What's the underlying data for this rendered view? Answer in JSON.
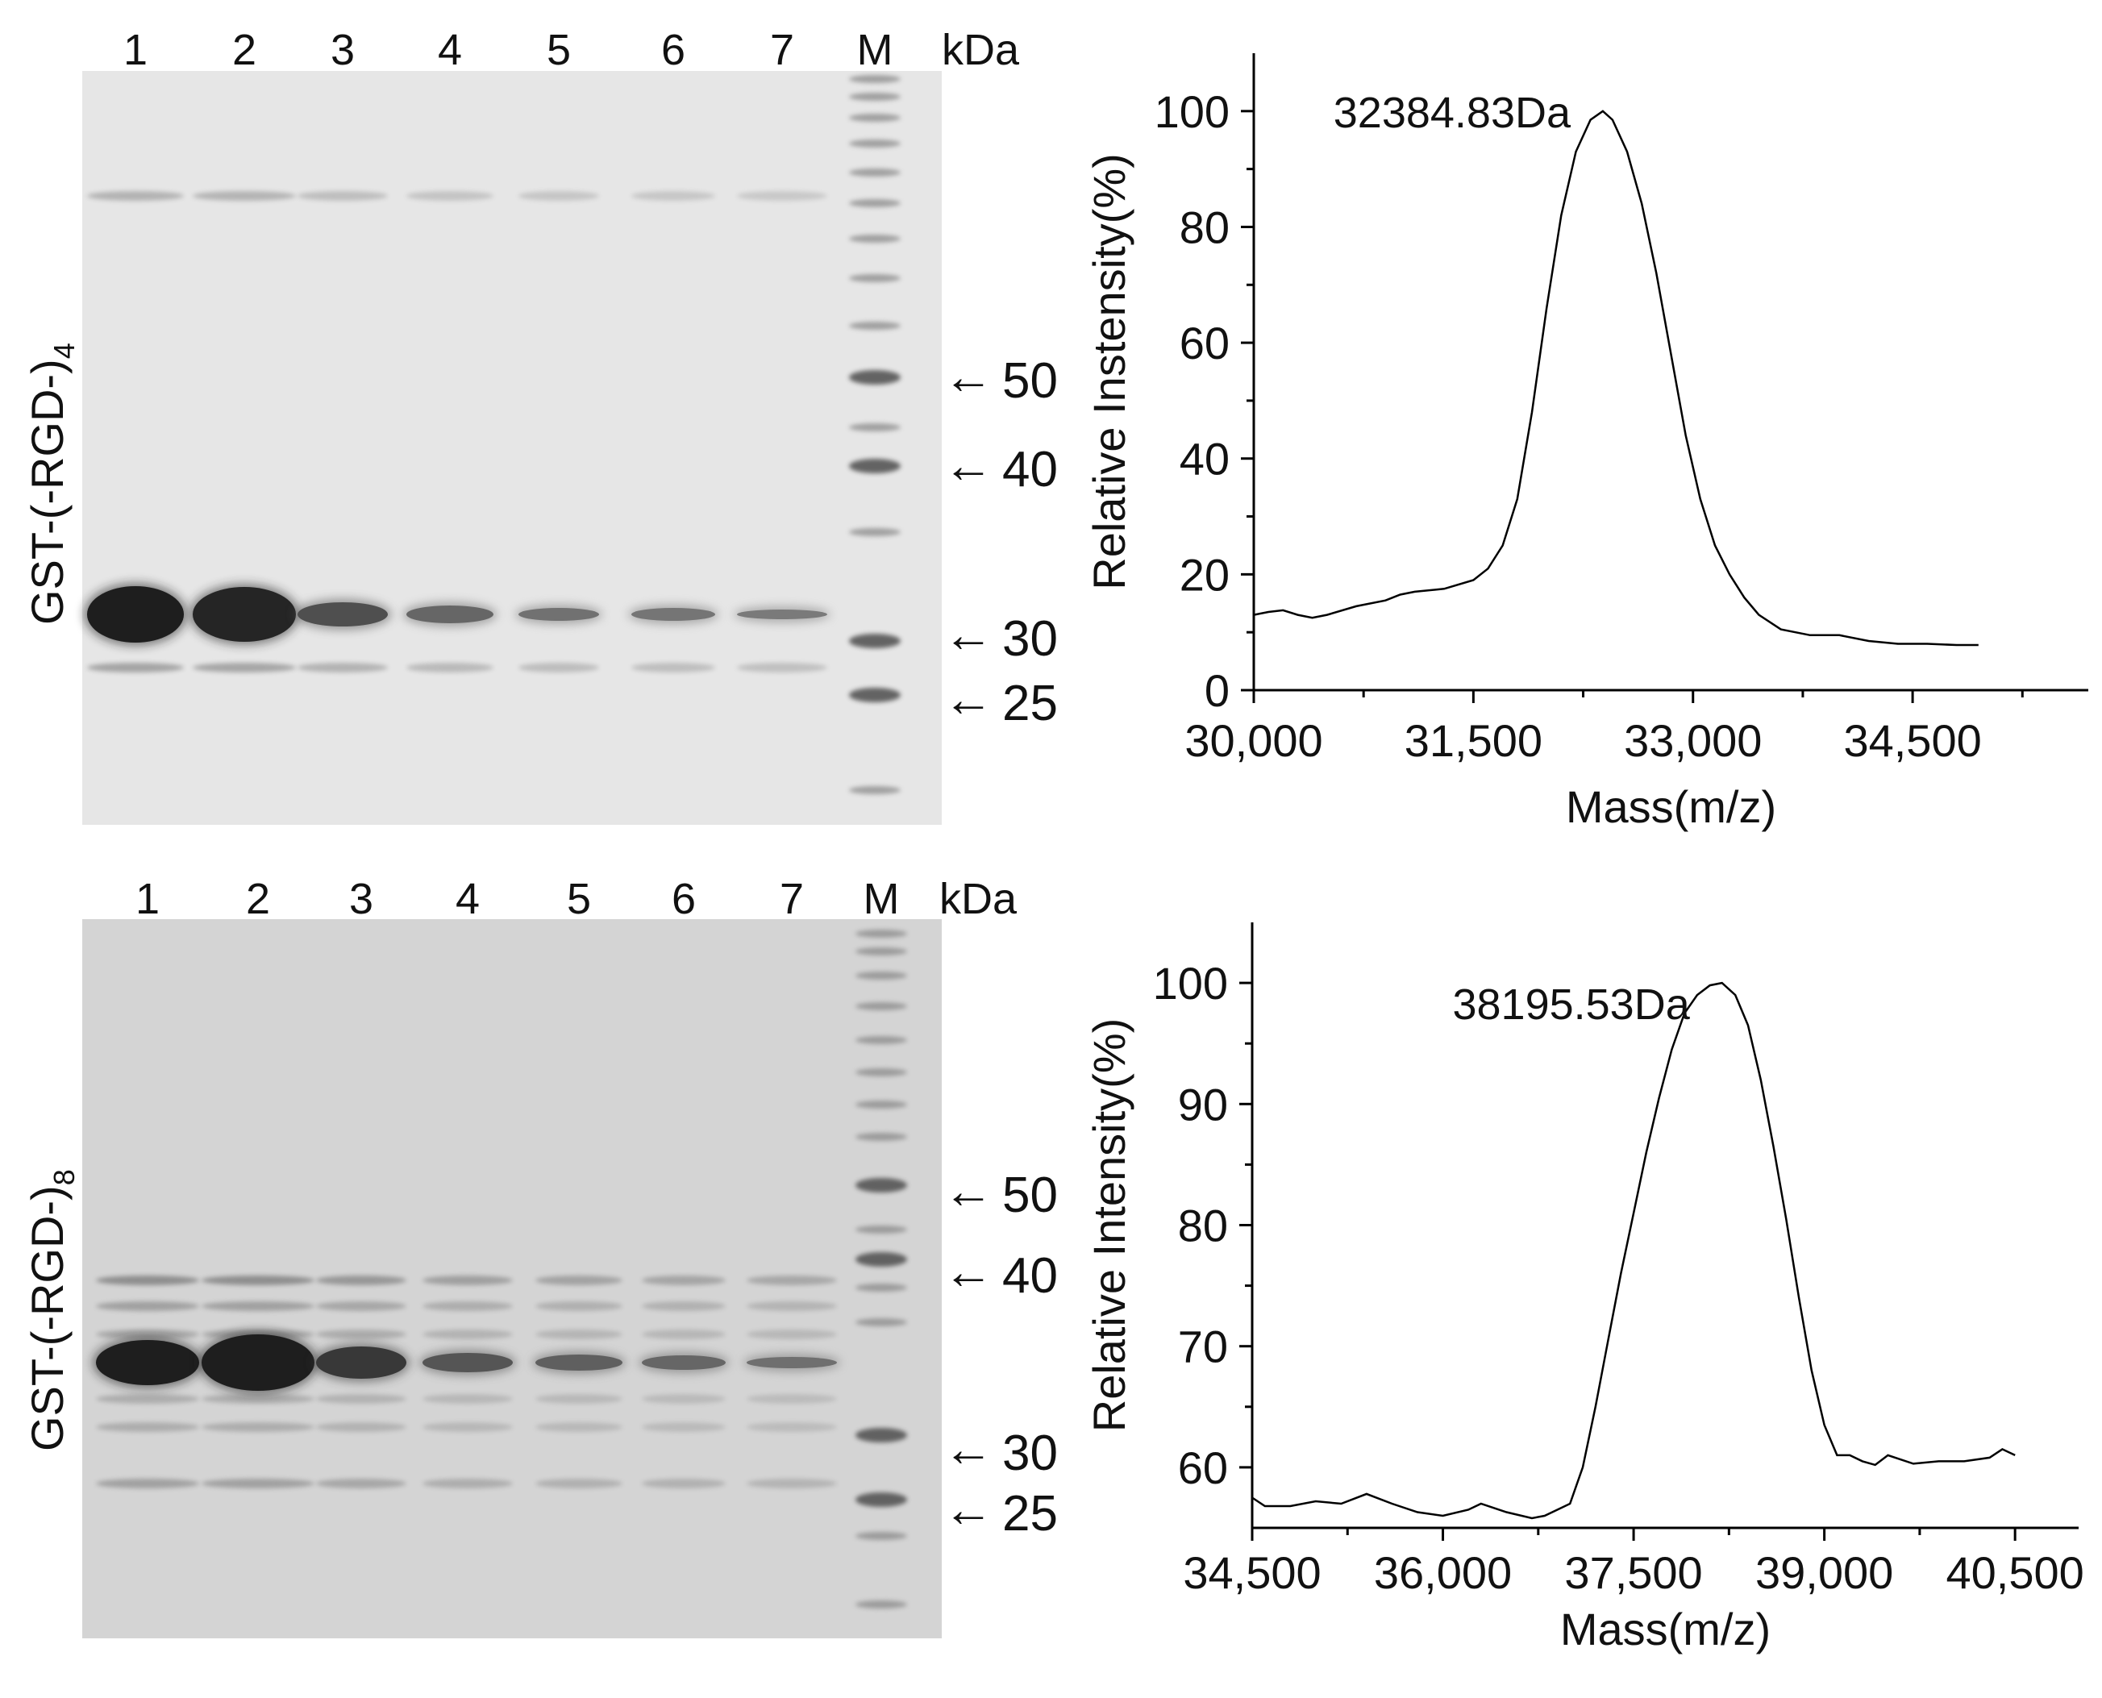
{
  "gels": [
    {
      "side_label_main": "GST-(-RGD-)",
      "side_label_sub": "4",
      "lanes": [
        "1",
        "2",
        "3",
        "4",
        "5",
        "6",
        "7",
        "M"
      ],
      "unit": "kDa",
      "markers": [
        "50",
        "40",
        "30",
        "25"
      ],
      "arrow": "←",
      "target_band_intensity": [
        1.0,
        0.95,
        0.62,
        0.45,
        0.36,
        0.33,
        0.29
      ]
    },
    {
      "side_label_main": "GST-(-RGD-)",
      "side_label_sub": "8",
      "lanes": [
        "1",
        "2",
        "3",
        "4",
        "5",
        "6",
        "7",
        "M"
      ],
      "unit": "kDa",
      "markers": [
        "50",
        "40",
        "30",
        "25"
      ],
      "arrow": "←",
      "target_band_intensity": [
        1.0,
        1.0,
        0.8,
        0.58,
        0.5,
        0.45,
        0.38
      ]
    }
  ],
  "chart_data": [
    {
      "type": "line",
      "xlabel": "Mass(m/z)",
      "ylabel": "Relative Instensity(%)",
      "xlim": [
        30000,
        35700
      ],
      "ylim": [
        0,
        110
      ],
      "xticks": [
        30000,
        31500,
        33000,
        34500
      ],
      "xtick_labels": [
        "30,000",
        "31,500",
        "33,000",
        "34,500"
      ],
      "yticks": [
        0,
        20,
        40,
        60,
        80,
        100
      ],
      "yticks_minor": [
        10,
        30,
        50,
        70,
        90
      ],
      "peak_label": "32384.83Da",
      "peak": [
        32384.83,
        100
      ],
      "series": [
        {
          "x": [
            30000,
            30100,
            30200,
            30300,
            30400,
            30500,
            30700,
            30900,
            31000,
            31100,
            31300,
            31500,
            31600,
            31700,
            31800,
            31900,
            32000,
            32100,
            32200,
            32300,
            32384,
            32450,
            32550,
            32650,
            32750,
            32850,
            32950,
            33050,
            33150,
            33250,
            33350,
            33450,
            33600,
            33800,
            34000,
            34200,
            34400,
            34600,
            34800,
            34950
          ],
          "y": [
            13,
            13.5,
            13.8,
            13,
            12.5,
            13,
            14.5,
            15.5,
            16.5,
            17,
            17.5,
            19,
            21,
            25,
            33,
            48,
            66,
            82,
            93,
            98.5,
            100,
            98.5,
            93,
            84,
            72,
            58,
            44,
            33,
            25,
            20,
            16,
            13,
            10.5,
            9.5,
            9.5,
            8.5,
            8,
            8,
            7.8,
            7.8
          ]
        }
      ]
    },
    {
      "type": "line",
      "xlabel": "Mass(m/z)",
      "ylabel": "Relative Intensity(%)",
      "xlim": [
        34500,
        41000
      ],
      "ylim": [
        55,
        105
      ],
      "xticks": [
        34500,
        36000,
        37500,
        39000,
        40500
      ],
      "xtick_labels": [
        "34,500",
        "36,000",
        "37,500",
        "39,000",
        "40,500"
      ],
      "yticks": [
        60,
        70,
        80,
        90,
        100
      ],
      "yticks_minor": [
        65,
        75,
        85,
        95
      ],
      "peak_label": "38195.53Da",
      "peak": [
        38195.53,
        100
      ],
      "series": [
        {
          "x": [
            34500,
            34600,
            34800,
            35000,
            35200,
            35400,
            35600,
            35800,
            36000,
            36200,
            36300,
            36500,
            36700,
            36800,
            36900,
            37000,
            37100,
            37200,
            37300,
            37400,
            37500,
            37600,
            37700,
            37800,
            37900,
            38000,
            38100,
            38195,
            38300,
            38400,
            38500,
            38600,
            38700,
            38800,
            38900,
            39000,
            39100,
            39200,
            39300,
            39400,
            39500,
            39700,
            39900,
            40100,
            40300,
            40400,
            40500
          ],
          "y": [
            57.5,
            56.8,
            56.8,
            57.2,
            57,
            57.8,
            57,
            56.3,
            56,
            56.5,
            57,
            56.3,
            55.8,
            56,
            56.5,
            57,
            60,
            65,
            70.5,
            76,
            81,
            86,
            90.5,
            94.5,
            97.5,
            99,
            99.8,
            100,
            99,
            96.5,
            92,
            86.5,
            80.5,
            74,
            68,
            63.5,
            61,
            61,
            60.5,
            60.2,
            61,
            60.3,
            60.5,
            60.5,
            60.8,
            61.5,
            61
          ]
        }
      ]
    }
  ]
}
